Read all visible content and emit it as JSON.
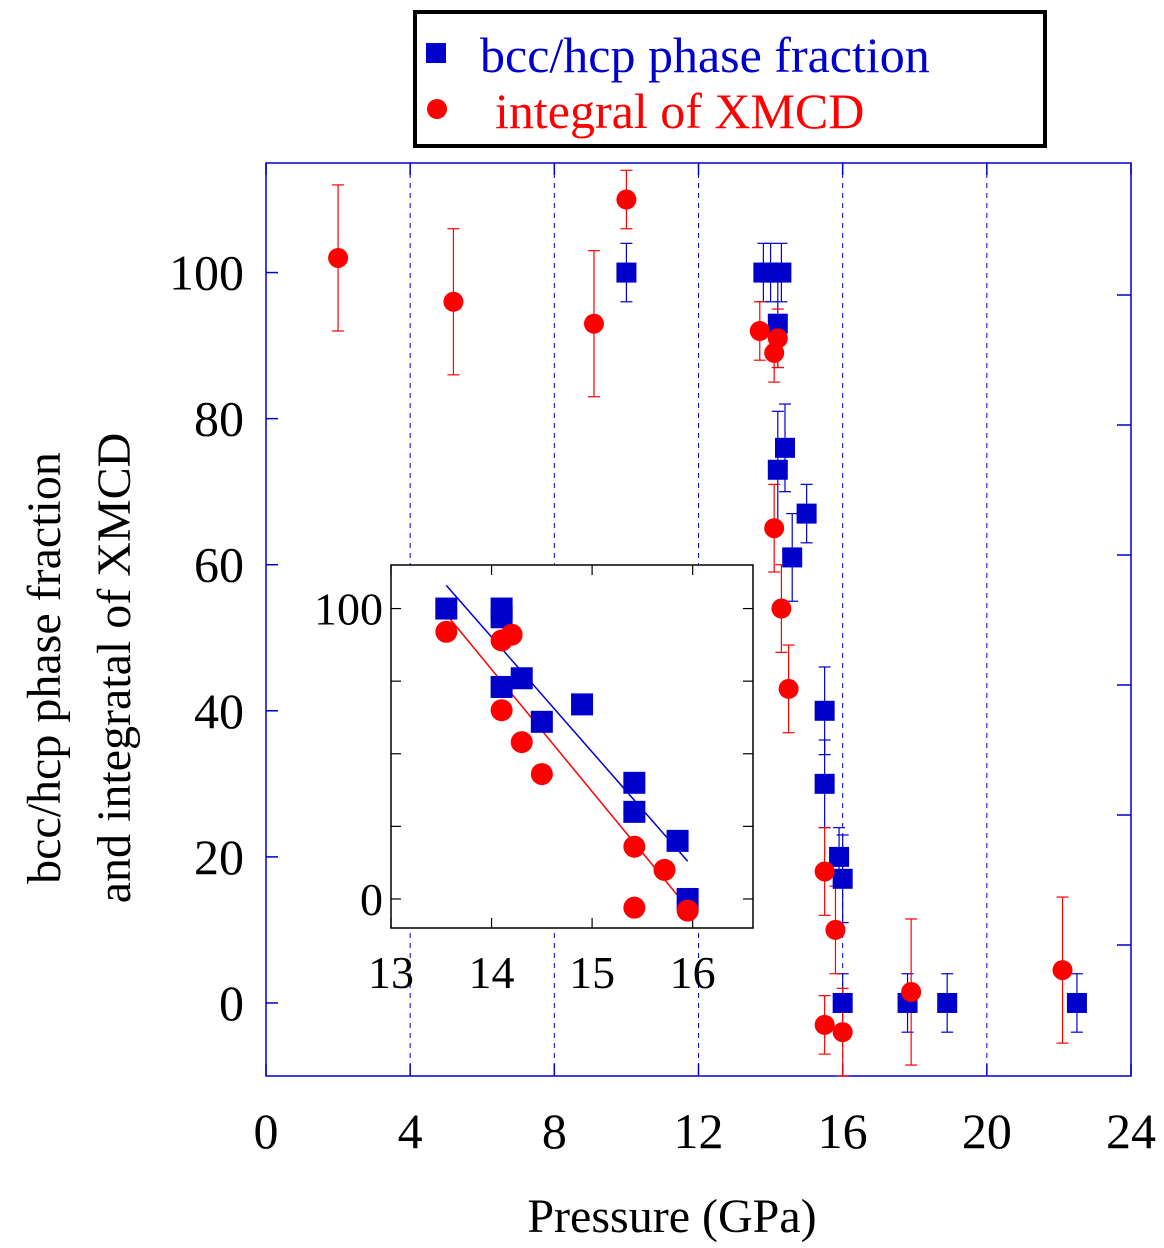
{
  "chart_data": [
    {
      "type": "scatter",
      "title": "",
      "xlabel": "Pressure (GPa)",
      "ylabel": "bcc/hcp phase fraction and integratal of XMCD",
      "ylabel_lines": [
        "bcc/hcp phase fraction",
        "and integratal of XMCD"
      ],
      "xlim": [
        0,
        24
      ],
      "ylim": [
        -10,
        115
      ],
      "x_ticks": [
        0,
        4,
        8,
        12,
        16,
        20,
        24
      ],
      "y_ticks": [
        0,
        20,
        40,
        60,
        80,
        100
      ],
      "grid": "vertical dashed lines",
      "legend_position": "top",
      "series": [
        {
          "name": "bcc/hcp phase fraction",
          "marker": "square",
          "color": "#0000cc",
          "points": [
            {
              "x": 10.0,
              "y": 100,
              "err": 4
            },
            {
              "x": 13.8,
              "y": 100,
              "err": 4
            },
            {
              "x": 14.0,
              "y": 100,
              "err": 4
            },
            {
              "x": 14.3,
              "y": 100,
              "err": 4
            },
            {
              "x": 14.2,
              "y": 93,
              "err": 6
            },
            {
              "x": 14.2,
              "y": 73,
              "err": 8
            },
            {
              "x": 14.4,
              "y": 76,
              "err": 6
            },
            {
              "x": 15.0,
              "y": 67,
              "err": 4
            },
            {
              "x": 14.6,
              "y": 61,
              "err": 6
            },
            {
              "x": 15.5,
              "y": 40,
              "err": 6
            },
            {
              "x": 15.5,
              "y": 30,
              "err": 6
            },
            {
              "x": 15.9,
              "y": 20,
              "err": 4
            },
            {
              "x": 16.0,
              "y": 17,
              "err": 6
            },
            {
              "x": 16.0,
              "y": 0,
              "err": 4
            },
            {
              "x": 17.8,
              "y": 0,
              "err": 4
            },
            {
              "x": 18.9,
              "y": 0,
              "err": 4
            },
            {
              "x": 22.5,
              "y": 0,
              "err": 4
            }
          ]
        },
        {
          "name": "integral of XMCD",
          "marker": "circle",
          "color": "#ff0000",
          "points": [
            {
              "x": 2.0,
              "y": 102,
              "err": 10
            },
            {
              "x": 5.2,
              "y": 96,
              "err": 10
            },
            {
              "x": 9.1,
              "y": 93,
              "err": 10
            },
            {
              "x": 10.0,
              "y": 110,
              "err": 4
            },
            {
              "x": 13.7,
              "y": 92,
              "err": 4
            },
            {
              "x": 14.1,
              "y": 89,
              "err": 4
            },
            {
              "x": 14.2,
              "y": 91,
              "err": 4
            },
            {
              "x": 14.1,
              "y": 65,
              "err": 6
            },
            {
              "x": 14.3,
              "y": 54,
              "err": 6
            },
            {
              "x": 14.5,
              "y": 43,
              "err": 6
            },
            {
              "x": 15.5,
              "y": 18,
              "err": 6
            },
            {
              "x": 15.8,
              "y": 10,
              "err": 6
            },
            {
              "x": 15.5,
              "y": -3,
              "err": 4
            },
            {
              "x": 16.0,
              "y": -4,
              "err": 6
            },
            {
              "x": 17.9,
              "y": 1.5,
              "err": 10
            },
            {
              "x": 22.1,
              "y": 4.5,
              "err": 10
            }
          ]
        }
      ]
    },
    {
      "type": "scatter",
      "title": "",
      "inset": true,
      "xlim": [
        13,
        16.6
      ],
      "ylim": [
        -10,
        115
      ],
      "x_ticks": [
        13,
        14,
        15,
        16
      ],
      "y_ticks": [
        0,
        100
      ],
      "series": [
        {
          "name": "bcc/hcp phase fraction",
          "marker": "square",
          "color": "#0000cc",
          "points": [
            {
              "x": 13.55,
              "y": 100
            },
            {
              "x": 14.1,
              "y": 100
            },
            {
              "x": 14.1,
              "y": 97
            },
            {
              "x": 14.1,
              "y": 73
            },
            {
              "x": 14.3,
              "y": 76
            },
            {
              "x": 14.5,
              "y": 61
            },
            {
              "x": 14.9,
              "y": 67
            },
            {
              "x": 15.42,
              "y": 40
            },
            {
              "x": 15.42,
              "y": 30
            },
            {
              "x": 15.85,
              "y": 20
            },
            {
              "x": 15.95,
              "y": 0
            }
          ],
          "fit_line": {
            "x": [
              13.55,
              15.95
            ],
            "y": [
              108,
              13
            ]
          }
        },
        {
          "name": "integral of XMCD",
          "marker": "circle",
          "color": "#ff0000",
          "points": [
            {
              "x": 13.55,
              "y": 92
            },
            {
              "x": 14.1,
              "y": 89
            },
            {
              "x": 14.2,
              "y": 91
            },
            {
              "x": 14.1,
              "y": 65
            },
            {
              "x": 14.3,
              "y": 54
            },
            {
              "x": 14.5,
              "y": 43
            },
            {
              "x": 15.42,
              "y": 18
            },
            {
              "x": 15.72,
              "y": 10
            },
            {
              "x": 15.42,
              "y": -3
            },
            {
              "x": 15.95,
              "y": -4
            }
          ],
          "fit_line": {
            "x": [
              13.55,
              15.95
            ],
            "y": [
              98,
              -3
            ]
          }
        }
      ]
    }
  ]
}
